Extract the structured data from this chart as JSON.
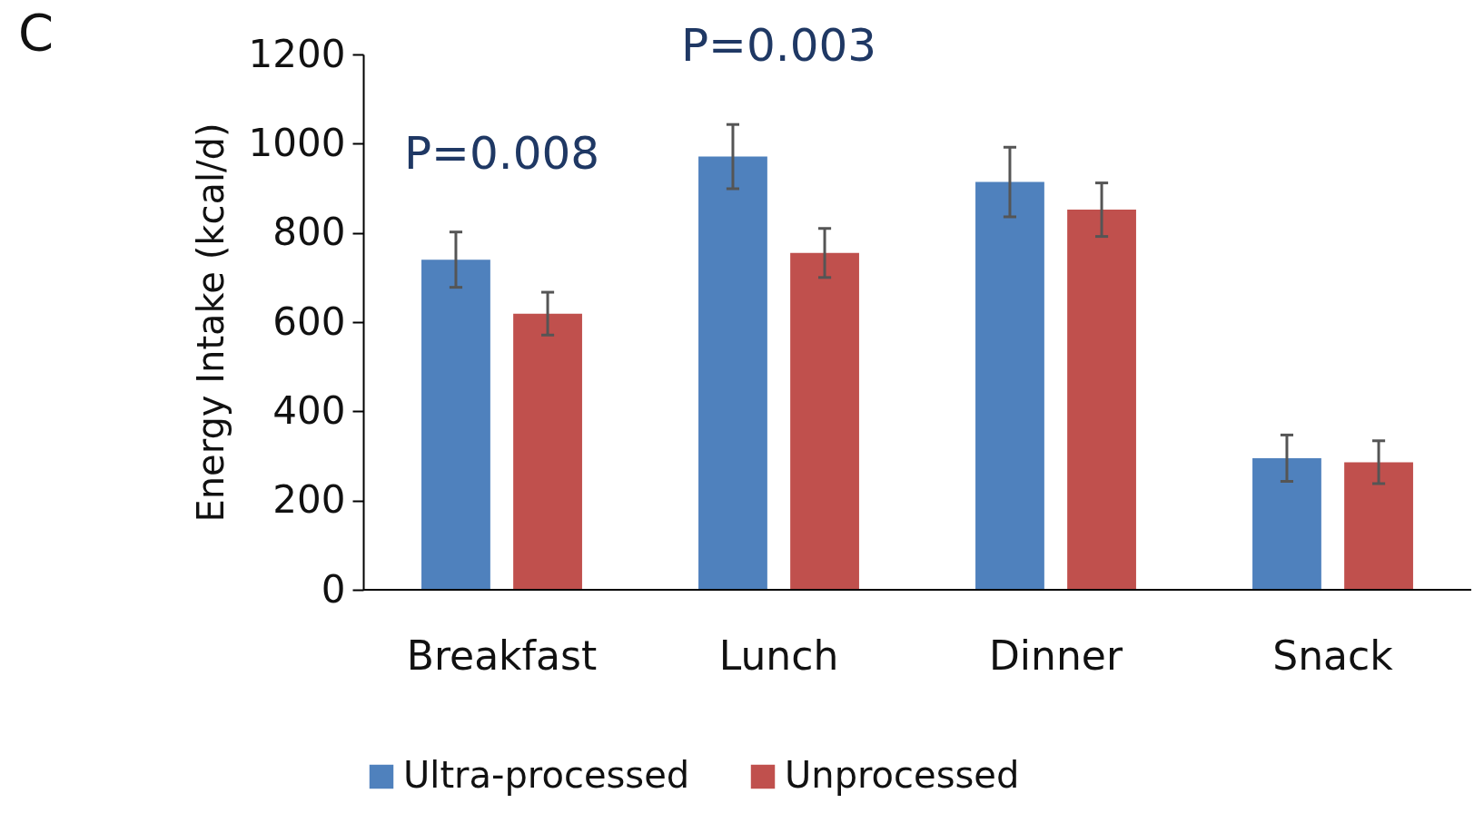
{
  "chart_data": {
    "type": "bar",
    "categories": [
      "Breakfast",
      "Lunch",
      "Dinner",
      "Snack"
    ],
    "series": [
      {
        "name": "Ultra-processed",
        "color": "#4f81bd",
        "values": [
          740,
          971,
          914,
          295
        ],
        "errors": [
          62,
          72,
          78,
          52
        ]
      },
      {
        "name": "Unprocessed",
        "color": "#c0504d",
        "values": [
          619,
          755,
          852,
          286
        ],
        "errors": [
          48,
          55,
          60,
          48
        ]
      }
    ],
    "ylabel": "Energy Intake (kcal/d)",
    "ylim": [
      0,
      1200
    ],
    "yticks": [
      0,
      200,
      400,
      600,
      800,
      {
        "value": 1000,
        "label": "1000"
      },
      {
        "value": 1200,
        "label": "1200"
      }
    ],
    "grid": false,
    "legend": "bottom",
    "annotations": [
      "C",
      "P=0.008",
      "P=0.003"
    ]
  }
}
